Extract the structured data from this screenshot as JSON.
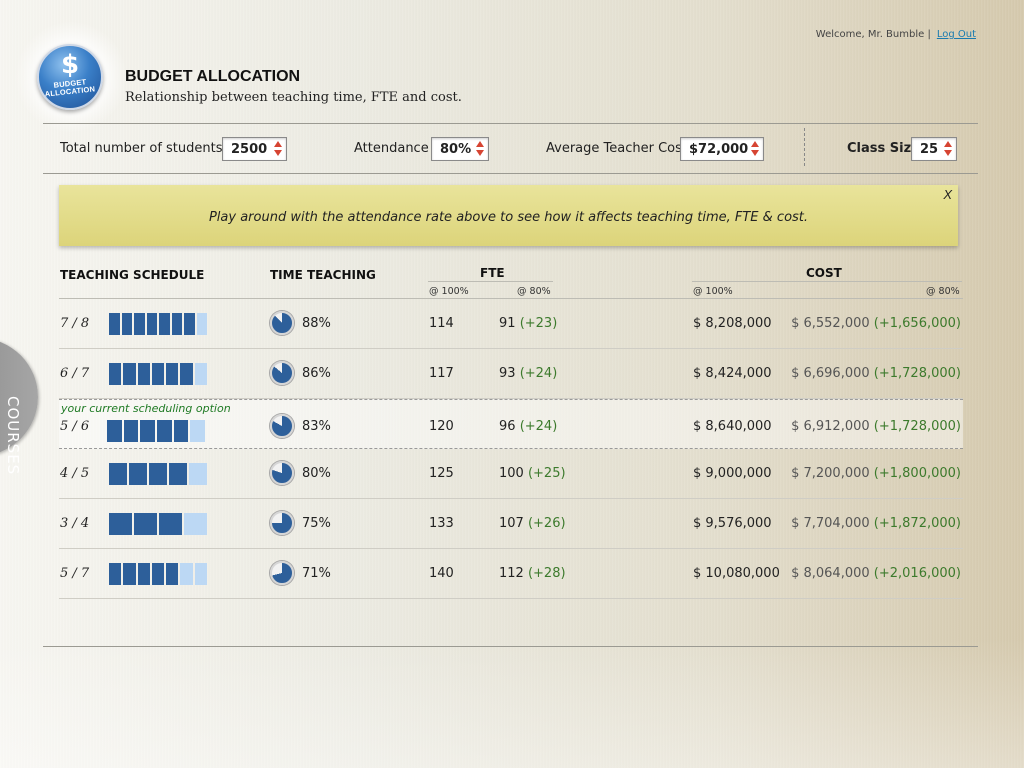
{
  "header": {
    "welcome_text": "Welcome,  Mr. Bumble  |",
    "logout_label": "Log Out",
    "logo_symbol": "$",
    "logo_caption_1": "BUDGET",
    "logo_caption_2": "ALLOCATION",
    "title": "BUDGET ALLOCATION",
    "subtitle": "Relationship between teaching time, FTE and cost."
  },
  "controls": {
    "students_label": "Total number of students",
    "students_value": "2500",
    "attendance_label": "Attendance",
    "attendance_value": "80%",
    "teacher_cost_label": "Average Teacher Cost",
    "teacher_cost_value": "$72,000",
    "class_size_label": "Class Size",
    "class_size_value": "25"
  },
  "note": {
    "text": "Play around with the attendance rate above to see how it affects teaching time, FTE & cost.",
    "close": "X"
  },
  "table": {
    "headers": {
      "schedule": "TEACHING SCHEDULE",
      "time": "TIME TEACHING",
      "fte": "FTE",
      "cost": "COST",
      "fte_100": "@ 100%",
      "fte_80": "@ 80%",
      "cost_100": "@ 100%",
      "cost_80": "@ 80%"
    },
    "current_option_label": "your current scheduling option",
    "rows": [
      {
        "schedule": "7 / 8",
        "filled": 7,
        "total": 8,
        "time": "88%",
        "time_frac": 0.88,
        "fte_100": "114",
        "fte_80": "91",
        "fte_delta": "(+23)",
        "cost_100": "$ 8,208,000",
        "cost_80": "$ 6,552,000",
        "cost_delta": "(+1,656,000)"
      },
      {
        "schedule": "6 / 7",
        "filled": 6,
        "total": 7,
        "time": "86%",
        "time_frac": 0.86,
        "fte_100": "117",
        "fte_80": "93",
        "fte_delta": "(+24)",
        "cost_100": "$ 8,424,000",
        "cost_80": "$ 6,696,000",
        "cost_delta": "(+1,728,000)"
      },
      {
        "schedule": "5 / 6",
        "filled": 5,
        "total": 6,
        "time": "83%",
        "time_frac": 0.83,
        "fte_100": "120",
        "fte_80": "96",
        "fte_delta": "(+24)",
        "cost_100": "$ 8,640,000",
        "cost_80": "$ 6,912,000",
        "cost_delta": "(+1,728,000)"
      },
      {
        "schedule": "4 / 5",
        "filled": 4,
        "total": 5,
        "time": "80%",
        "time_frac": 0.8,
        "fte_100": "125",
        "fte_80": "100",
        "fte_delta": "(+25)",
        "cost_100": "$ 9,000,000",
        "cost_80": "$ 7,200,000",
        "cost_delta": "(+1,800,000)"
      },
      {
        "schedule": "3 / 4",
        "filled": 3,
        "total": 4,
        "time": "75%",
        "time_frac": 0.75,
        "fte_100": "133",
        "fte_80": "107",
        "fte_delta": "(+26)",
        "cost_100": "$ 9,576,000",
        "cost_80": "$ 7,704,000",
        "cost_delta": "(+1,872,000)"
      },
      {
        "schedule": "5 / 7",
        "filled": 5,
        "total": 7,
        "time": "71%",
        "time_frac": 0.71,
        "fte_100": "140",
        "fte_80": "112",
        "fte_delta": "(+28)",
        "cost_100": "$ 10,080,000",
        "cost_80": "$ 8,064,000",
        "cost_delta": "(+2,016,000)"
      }
    ]
  },
  "side_tab": {
    "label": "COURSES"
  },
  "colors": {
    "bar_filled": "#2d5f9a",
    "bar_empty": "#bcd8f4",
    "pie_fill": "#2d5f9a",
    "delta_green": "#3c7a2c",
    "note_yellow": "#e3dc88",
    "arrow_red": "#d64432"
  }
}
